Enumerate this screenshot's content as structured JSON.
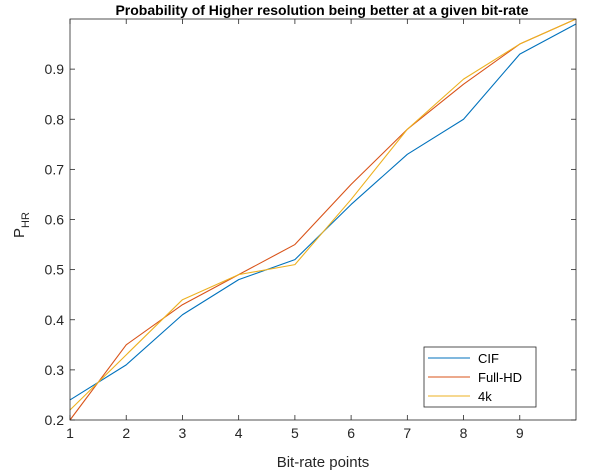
{
  "chart_data": {
    "type": "line",
    "title": "Probability of Higher resolution being better at a given bit-rate",
    "xlabel": "Bit-rate points",
    "ylabel_main": "P",
    "ylabel_sub": "HR",
    "xlim": [
      1,
      10
    ],
    "ylim": [
      0.2,
      1.0
    ],
    "xticks": [
      1,
      2,
      3,
      4,
      5,
      6,
      7,
      8,
      9
    ],
    "yticks": [
      0.2,
      0.3,
      0.4,
      0.5,
      0.6,
      0.7,
      0.8,
      0.9
    ],
    "grid": false,
    "legend_position": "bottom-right",
    "x": [
      1,
      2,
      3,
      4,
      5,
      6,
      7,
      8,
      9,
      10
    ],
    "series": [
      {
        "name": "CIF",
        "color": "#0072BD",
        "values": [
          0.24,
          0.31,
          0.41,
          0.48,
          0.52,
          0.63,
          0.73,
          0.8,
          0.93,
          0.99
        ]
      },
      {
        "name": "Full-HD",
        "color": "#D95319",
        "values": [
          0.2,
          0.35,
          0.43,
          0.49,
          0.55,
          0.67,
          0.78,
          0.87,
          0.95,
          1.0
        ]
      },
      {
        "name": "4k",
        "color": "#EDB120",
        "values": [
          0.22,
          0.33,
          0.44,
          0.49,
          0.51,
          0.64,
          0.78,
          0.88,
          0.95,
          1.0
        ]
      }
    ]
  }
}
